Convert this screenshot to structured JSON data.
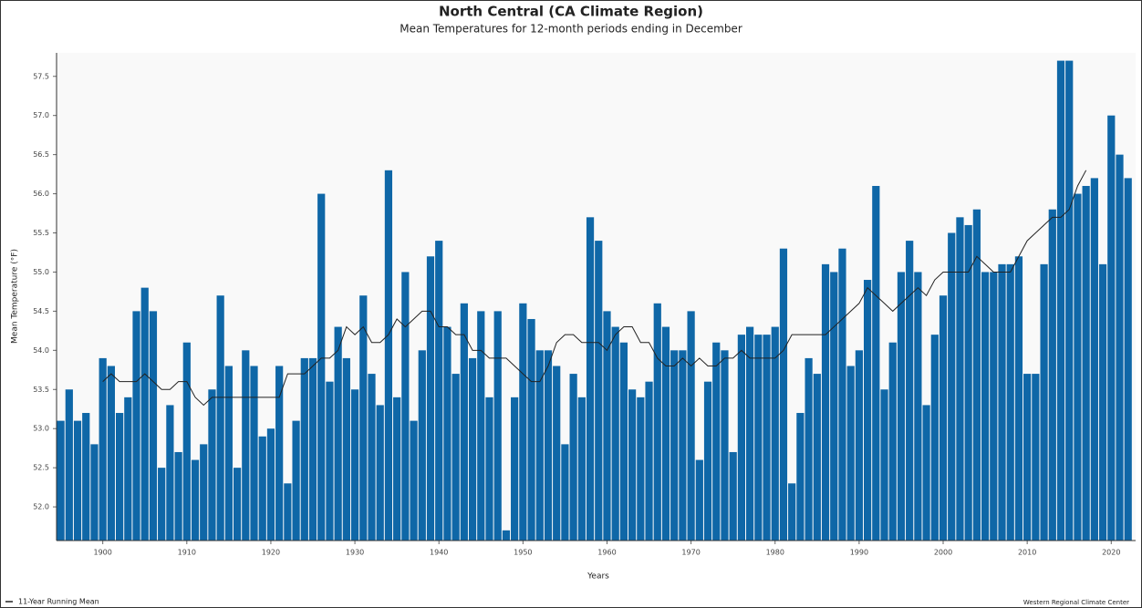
{
  "chart_data": {
    "type": "bar",
    "title": "North Central (CA Climate Region)",
    "subtitle": "Mean Temperatures for 12-month periods ending in December",
    "y_label": "Mean Temperature (°F)",
    "x_label": "Years",
    "credit": "Western Regional Climate Center",
    "x": [
      1895,
      1896,
      1897,
      1898,
      1899,
      1900,
      1901,
      1902,
      1903,
      1904,
      1905,
      1906,
      1907,
      1908,
      1909,
      1910,
      1911,
      1912,
      1913,
      1914,
      1915,
      1916,
      1917,
      1918,
      1919,
      1920,
      1921,
      1922,
      1923,
      1924,
      1925,
      1926,
      1927,
      1928,
      1929,
      1930,
      1931,
      1932,
      1933,
      1934,
      1935,
      1936,
      1937,
      1938,
      1939,
      1940,
      1941,
      1942,
      1943,
      1944,
      1945,
      1946,
      1947,
      1948,
      1949,
      1950,
      1951,
      1952,
      1953,
      1954,
      1955,
      1956,
      1957,
      1958,
      1959,
      1960,
      1961,
      1962,
      1963,
      1964,
      1965,
      1966,
      1967,
      1968,
      1969,
      1970,
      1971,
      1972,
      1973,
      1974,
      1975,
      1976,
      1977,
      1978,
      1979,
      1980,
      1981,
      1982,
      1983,
      1984,
      1985,
      1986,
      1987,
      1988,
      1989,
      1990,
      1991,
      1992,
      1993,
      1994,
      1995,
      1996,
      1997,
      1998,
      1999,
      2000,
      2001,
      2002,
      2003,
      2004,
      2005,
      2006,
      2007,
      2008,
      2009,
      2010,
      2011,
      2012,
      2013,
      2014,
      2015,
      2016,
      2017,
      2018,
      2019,
      2020,
      2021,
      2022
    ],
    "series": [
      {
        "color": "#0f67a7",
        "values": [
          53.1,
          53.5,
          53.1,
          53.2,
          52.8,
          53.9,
          53.8,
          53.2,
          53.4,
          54.5,
          54.8,
          54.5,
          52.5,
          53.3,
          52.7,
          54.1,
          52.6,
          52.8,
          53.5,
          54.7,
          53.8,
          52.5,
          54.0,
          53.8,
          52.9,
          53.0,
          53.8,
          52.3,
          53.1,
          53.9,
          53.9,
          56.0,
          53.6,
          54.3,
          53.9,
          53.5,
          54.7,
          53.7,
          53.3,
          56.3,
          53.4,
          55.0,
          53.1,
          54.0,
          55.2,
          55.4,
          54.3,
          53.7,
          54.6,
          53.9,
          54.5,
          53.4,
          54.5,
          51.7,
          53.4,
          54.6,
          54.4,
          54.0,
          54.0,
          53.8,
          52.8,
          53.7,
          53.4,
          55.7,
          55.4,
          54.5,
          54.3,
          54.1,
          53.5,
          53.4,
          53.6,
          54.6,
          54.3,
          54.0,
          54.0,
          54.5,
          52.6,
          53.6,
          54.1,
          54.0,
          52.7,
          54.2,
          54.3,
          54.2,
          54.2,
          54.3,
          55.3,
          52.3,
          53.2,
          53.9,
          53.7,
          55.1,
          55.0,
          55.3,
          53.8,
          54.0,
          54.9,
          56.1,
          53.5,
          54.1,
          55.0,
          55.4,
          55.0,
          53.3,
          54.2,
          54.7,
          55.5,
          55.7,
          55.6,
          55.8,
          55.0,
          55.0,
          55.1,
          55.1,
          55.2,
          53.7,
          53.7,
          55.1,
          55.8,
          57.7,
          57.7,
          56.0,
          56.1,
          56.2,
          55.1,
          57.0,
          56.5,
          56.2
        ]
      },
      {
        "name": "11-Year Running Mean",
        "color": "#222222",
        "values": [
          null,
          null,
          null,
          null,
          null,
          53.6,
          53.7,
          53.6,
          53.6,
          53.6,
          53.7,
          53.6,
          53.5,
          53.5,
          53.6,
          53.6,
          53.4,
          53.3,
          53.4,
          53.4,
          53.4,
          53.4,
          53.4,
          53.4,
          53.4,
          53.4,
          53.4,
          53.7,
          53.7,
          53.7,
          53.8,
          53.9,
          53.9,
          54.0,
          54.3,
          54.2,
          54.3,
          54.1,
          54.1,
          54.2,
          54.4,
          54.3,
          54.4,
          54.5,
          54.5,
          54.3,
          54.3,
          54.2,
          54.2,
          54.0,
          54.0,
          53.9,
          53.9,
          53.9,
          53.8,
          53.7,
          53.6,
          53.6,
          53.8,
          54.1,
          54.2,
          54.2,
          54.1,
          54.1,
          54.1,
          54.0,
          54.2,
          54.3,
          54.3,
          54.1,
          54.1,
          53.9,
          53.8,
          53.8,
          53.9,
          53.8,
          53.9,
          53.8,
          53.8,
          53.9,
          53.9,
          54.0,
          53.9,
          53.9,
          53.9,
          53.9,
          54.0,
          54.2,
          54.2,
          54.2,
          54.2,
          54.2,
          54.3,
          54.4,
          54.5,
          54.6,
          54.8,
          54.7,
          54.6,
          54.5,
          54.6,
          54.7,
          54.8,
          54.7,
          54.9,
          55.0,
          55.0,
          55.0,
          55.0,
          55.2,
          55.1,
          55.0,
          55.0,
          55.0,
          55.2,
          55.4,
          55.5,
          55.6,
          55.7,
          55.7,
          55.8,
          56.1,
          56.3,
          null,
          null,
          null,
          null,
          null
        ]
      }
    ],
    "xlim": [
      1894.5,
      2022.9
    ],
    "xticks": [
      1900,
      1910,
      1920,
      1930,
      1940,
      1950,
      1960,
      1970,
      1980,
      1990,
      2000,
      2010,
      2020
    ],
    "ylim": [
      51.57,
      57.8
    ],
    "yticks": [
      {
        "value": 52,
        "label": "52.0"
      },
      52.5,
      {
        "value": 53,
        "label": "53.0"
      },
      53.5,
      {
        "value": 54,
        "label": "54.0"
      },
      54.5,
      {
        "value": 55,
        "label": "55.0"
      },
      55.5,
      {
        "value": 56,
        "label": "56.0"
      },
      56.5,
      {
        "value": 57,
        "label": "57.0"
      },
      57.5
    ],
    "legend": "bottom-left"
  }
}
